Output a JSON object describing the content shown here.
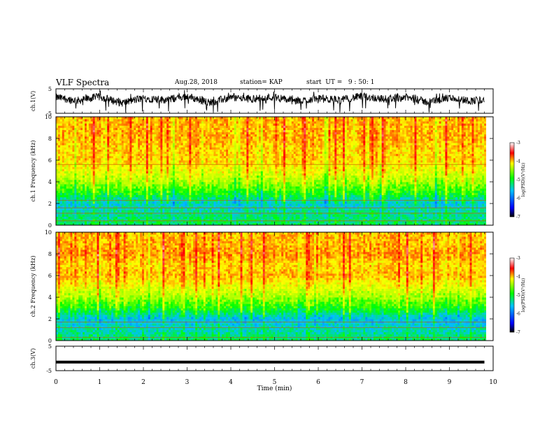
{
  "header": {
    "title": "VLF Spectra",
    "date": "Aug.28, 2018",
    "station": "station= KAP",
    "start": "start  UT =   9 : 50: 1"
  },
  "chart_data": [
    {
      "type": "line",
      "panel": "ch1-waveform",
      "ylabel": "ch.1(V)",
      "ylim": [
        -5,
        5
      ],
      "yticks": [
        "5",
        "-5"
      ],
      "xlim": [
        0,
        10
      ],
      "x": [
        0,
        0.5,
        1,
        1.5,
        2,
        2.5,
        3,
        3.5,
        4,
        4.5,
        5,
        5.5,
        6,
        6.5,
        7,
        7.5,
        8,
        8.5,
        9,
        9.5,
        9.8
      ],
      "y": [
        1.5,
        0.2,
        1.8,
        -0.8,
        1.2,
        0.5,
        1.9,
        -0.6,
        1.4,
        0.9,
        1.7,
        -0.2,
        1.1,
        0.4,
        2.0,
        0.8,
        1.6,
        -0.4,
        1.3,
        0.1,
        0.6
      ],
      "color": "#000000"
    },
    {
      "type": "heatmap",
      "panel": "ch1-spectrogram",
      "ylabel": "ch.1 Frequency (kHz)",
      "ylim": [
        0,
        10
      ],
      "yticks": [
        "0",
        "2",
        "4",
        "6",
        "8",
        "10"
      ],
      "xlim": [
        0,
        9.8
      ],
      "freq_bands_kHz": [
        0,
        1,
        2,
        3,
        4,
        5,
        6,
        7,
        8,
        9
      ],
      "log_psd": [
        -5.2,
        -5.3,
        -5.5,
        -5.0,
        -4.6,
        -4.3,
        -4.1,
        -4.1,
        -4.0,
        -4.0
      ],
      "line_features_kHz": [
        0.4,
        1.1,
        1.6,
        2.3,
        5.6
      ],
      "colorbar": {
        "label": "log(PSD)(V²/Hz)",
        "range": [
          -7,
          -3
        ],
        "ticks": [
          "-3",
          "-4",
          "-5",
          "-6",
          "-7"
        ]
      }
    },
    {
      "type": "heatmap",
      "panel": "ch2-spectrogram",
      "ylabel": "ch.2 Frequency (kHz)",
      "ylim": [
        0,
        10
      ],
      "yticks": [
        "0",
        "2",
        "4",
        "6",
        "8",
        "10"
      ],
      "xlim": [
        0,
        9.8
      ],
      "freq_bands_kHz": [
        0,
        1,
        2,
        3,
        4,
        5,
        6,
        7,
        8,
        9
      ],
      "log_psd": [
        -5.2,
        -5.4,
        -5.6,
        -5.0,
        -4.6,
        -4.3,
        -4.0,
        -4.1,
        -3.9,
        -4.0
      ],
      "line_features_kHz": [
        0.3,
        1.2,
        1.7
      ],
      "colorbar": {
        "label": "log(PSD)(V²/Hz)",
        "range": [
          -7,
          -3
        ],
        "ticks": [
          "-3",
          "-4",
          "-5",
          "-6",
          "-7"
        ]
      }
    },
    {
      "type": "line",
      "panel": "ch3-waveform",
      "ylabel": "ch.3(V)",
      "ylim": [
        -5,
        5
      ],
      "yticks": [
        "5",
        "-5"
      ],
      "xlim": [
        0,
        10
      ],
      "x": [
        0,
        9.8
      ],
      "y": [
        -1.5,
        -1.5
      ],
      "color": "#000000"
    }
  ],
  "xaxis": {
    "label": "Time  (min)",
    "ticks": [
      "0",
      "1",
      "2",
      "3",
      "4",
      "5",
      "6",
      "7",
      "8",
      "9",
      "10"
    ],
    "range": [
      0,
      10
    ]
  }
}
